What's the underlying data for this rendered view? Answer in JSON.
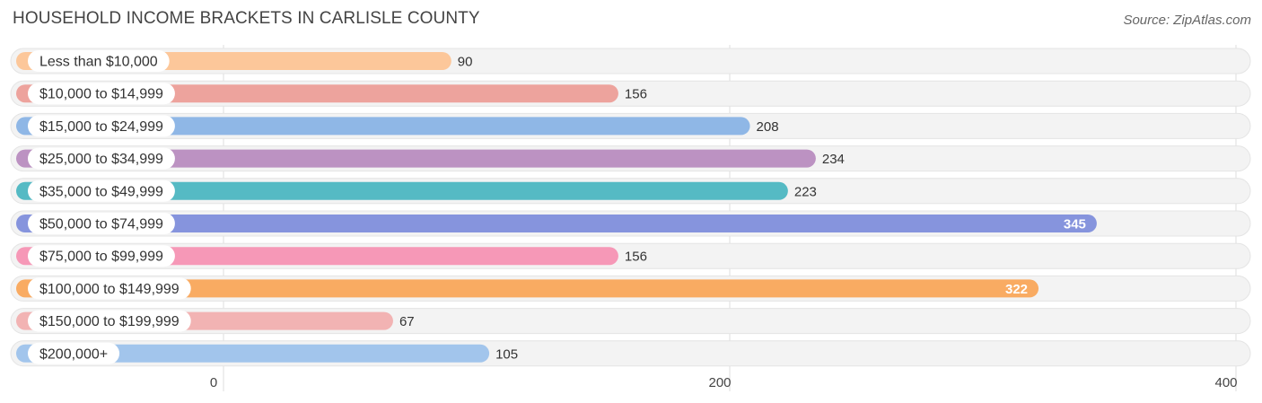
{
  "title": "HOUSEHOLD INCOME BRACKETS IN CARLISLE COUNTY",
  "source": "Source: ZipAtlas.com",
  "chart_data": {
    "type": "bar",
    "orientation": "horizontal",
    "title": "HOUSEHOLD INCOME BRACKETS IN CARLISLE COUNTY",
    "categories": [
      "Less than $10,000",
      "$10,000 to $14,999",
      "$15,000 to $24,999",
      "$25,000 to $34,999",
      "$35,000 to $49,999",
      "$50,000 to $74,999",
      "$75,000 to $99,999",
      "$100,000 to $149,999",
      "$150,000 to $199,999",
      "$200,000+"
    ],
    "values": [
      90,
      156,
      208,
      234,
      223,
      345,
      156,
      322,
      67,
      105
    ],
    "value_labels": [
      "90",
      "156",
      "208",
      "234",
      "223",
      "345",
      "156",
      "322",
      "67",
      "105"
    ],
    "colors": [
      "#fcc79a",
      "#eda39d",
      "#8fb7e6",
      "#bc92c2",
      "#55bac4",
      "#8694dd",
      "#f698b7",
      "#f9ab62",
      "#f2b3b3",
      "#a2c5ec"
    ],
    "xlim": [
      0,
      400
    ],
    "xticks": [
      0,
      200,
      400
    ],
    "xtick_labels": [
      "0",
      "200",
      "400"
    ],
    "grid": true
  }
}
